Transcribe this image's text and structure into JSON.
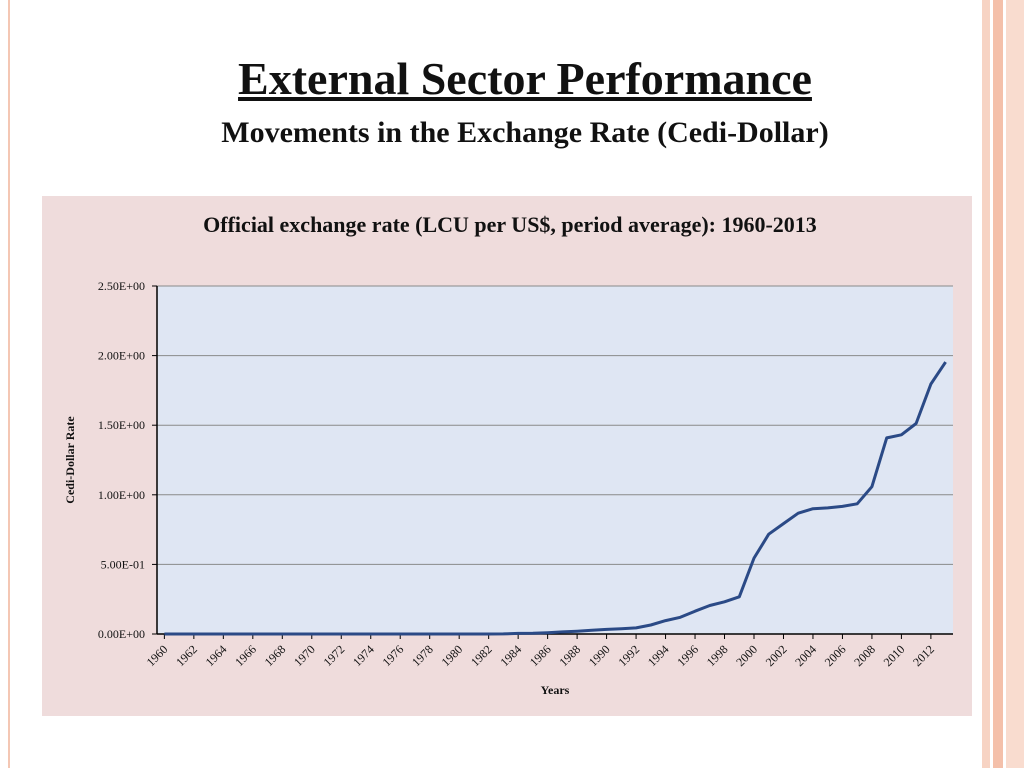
{
  "header": {
    "title": "External Sector Performance",
    "subtitle": "Movements in the Exchange Rate (Cedi-Dollar)"
  },
  "chart_data": {
    "type": "line",
    "title": "Official exchange rate (LCU per US$, period average): 1960-2013",
    "x_label": "Years",
    "y_label": "Cedi-Dollar Rate",
    "color": "#2b4a86",
    "x": [
      1960,
      1961,
      1962,
      1963,
      1964,
      1965,
      1966,
      1967,
      1968,
      1969,
      1970,
      1971,
      1972,
      1973,
      1974,
      1975,
      1976,
      1977,
      1978,
      1979,
      1980,
      1981,
      1982,
      1983,
      1984,
      1985,
      1986,
      1987,
      1988,
      1989,
      1990,
      1991,
      1992,
      1993,
      1994,
      1995,
      1996,
      1997,
      1998,
      1999,
      2000,
      2001,
      2002,
      2003,
      2004,
      2005,
      2006,
      2007,
      2008,
      2009,
      2010,
      2011,
      2012,
      2013
    ],
    "values": [
      0.0001,
      0.0001,
      0.0001,
      0.0001,
      0.0001,
      0.0001,
      0.0001,
      0.0001,
      0.0001,
      0.0001,
      0.0001,
      0.0001,
      0.0001,
      0.0001,
      0.0001,
      0.0001,
      0.0001,
      0.0001,
      0.0003,
      0.0003,
      0.0003,
      0.0003,
      0.0003,
      0.001,
      0.004,
      0.005,
      0.009,
      0.015,
      0.02,
      0.027,
      0.033,
      0.037,
      0.044,
      0.065,
      0.096,
      0.12,
      0.164,
      0.205,
      0.231,
      0.267,
      0.545,
      0.717,
      0.793,
      0.868,
      0.9,
      0.906,
      0.917,
      0.935,
      1.058,
      1.409,
      1.431,
      1.512,
      1.796,
      1.953
    ],
    "xlim": [
      1959.5,
      2013.5
    ],
    "xticks": [
      1960,
      1962,
      1964,
      1966,
      1968,
      1970,
      1972,
      1974,
      1976,
      1978,
      1980,
      1982,
      1984,
      1986,
      1988,
      1990,
      1992,
      1994,
      1996,
      1998,
      2000,
      2002,
      2004,
      2006,
      2008,
      2010,
      2012
    ],
    "ylim": [
      0,
      2.5
    ],
    "yticks": [
      {
        "value": 0,
        "label": "0.00E+00"
      },
      {
        "value": 0.5,
        "label": "5.00E-01"
      },
      {
        "value": 1,
        "label": "1.00E+00"
      },
      {
        "value": 1.5,
        "label": "1.50E+00"
      },
      {
        "value": 2,
        "label": "2.00E+00"
      },
      {
        "value": 2.5,
        "label": "2.50E+00"
      }
    ],
    "grid": true
  }
}
